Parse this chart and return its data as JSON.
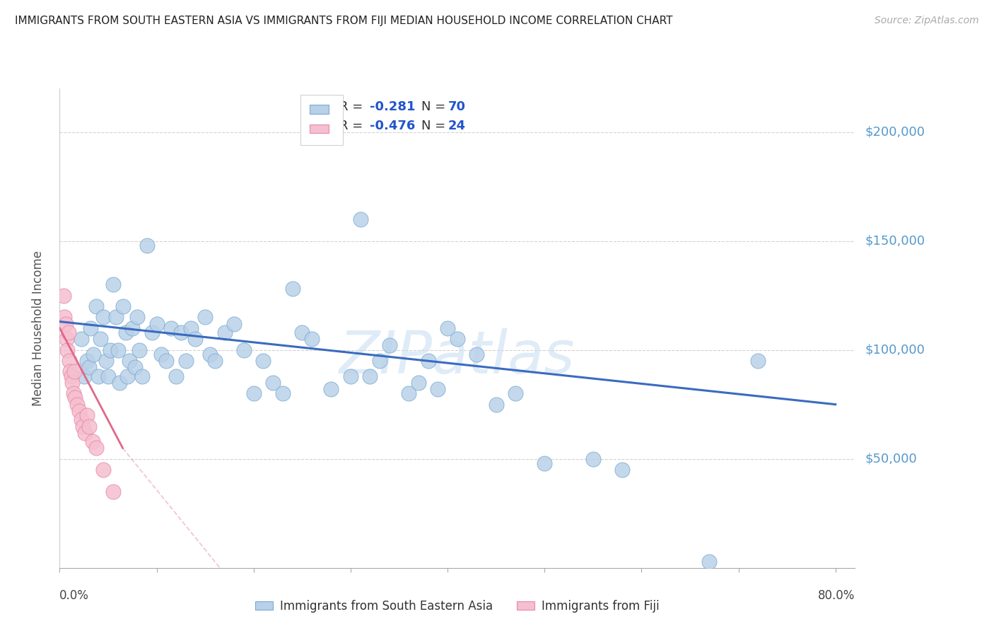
{
  "title": "IMMIGRANTS FROM SOUTH EASTERN ASIA VS IMMIGRANTS FROM FIJI MEDIAN HOUSEHOLD INCOME CORRELATION CHART",
  "source": "Source: ZipAtlas.com",
  "ylabel": "Median Household Income",
  "ytick_vals": [
    0,
    50000,
    100000,
    150000,
    200000
  ],
  "ytick_labels": [
    "",
    "$50,000",
    "$100,000",
    "$150,000",
    "$200,000"
  ],
  "xlim": [
    0.0,
    0.82
  ],
  "ylim": [
    20000,
    220000
  ],
  "blue_fill": "#b8d0e8",
  "blue_edge": "#7aaad0",
  "pink_fill": "#f5bfcf",
  "pink_edge": "#e888a8",
  "trend_blue_color": "#3a6bbf",
  "trend_pink_color": "#e06888",
  "R1": "-0.281",
  "N1": "70",
  "R2": "-0.476",
  "N2": "24",
  "label1": "Immigrants from South Eastern Asia",
  "label2": "Immigrants from Fiji",
  "watermark": "ZIPatlas",
  "blue_scatter_x": [
    0.022,
    0.025,
    0.028,
    0.03,
    0.032,
    0.035,
    0.038,
    0.04,
    0.042,
    0.045,
    0.048,
    0.05,
    0.052,
    0.055,
    0.058,
    0.06,
    0.062,
    0.065,
    0.068,
    0.07,
    0.072,
    0.075,
    0.078,
    0.08,
    0.082,
    0.085,
    0.09,
    0.095,
    0.1,
    0.105,
    0.11,
    0.115,
    0.12,
    0.125,
    0.13,
    0.135,
    0.14,
    0.15,
    0.155,
    0.16,
    0.17,
    0.18,
    0.19,
    0.2,
    0.21,
    0.22,
    0.23,
    0.24,
    0.25,
    0.26,
    0.28,
    0.3,
    0.31,
    0.32,
    0.33,
    0.34,
    0.36,
    0.37,
    0.38,
    0.39,
    0.4,
    0.41,
    0.43,
    0.45,
    0.47,
    0.5,
    0.55,
    0.58,
    0.67,
    0.72
  ],
  "blue_scatter_y": [
    105000,
    88000,
    95000,
    92000,
    110000,
    98000,
    120000,
    88000,
    105000,
    115000,
    95000,
    88000,
    100000,
    130000,
    115000,
    100000,
    85000,
    120000,
    108000,
    88000,
    95000,
    110000,
    92000,
    115000,
    100000,
    88000,
    148000,
    108000,
    112000,
    98000,
    95000,
    110000,
    88000,
    108000,
    95000,
    110000,
    105000,
    115000,
    98000,
    95000,
    108000,
    112000,
    100000,
    80000,
    95000,
    85000,
    80000,
    128000,
    108000,
    105000,
    82000,
    88000,
    160000,
    88000,
    95000,
    102000,
    80000,
    85000,
    95000,
    82000,
    110000,
    105000,
    98000,
    75000,
    80000,
    48000,
    50000,
    45000,
    3000,
    95000
  ],
  "fiji_scatter_x": [
    0.004,
    0.005,
    0.006,
    0.007,
    0.008,
    0.009,
    0.01,
    0.011,
    0.012,
    0.013,
    0.014,
    0.015,
    0.016,
    0.018,
    0.02,
    0.022,
    0.024,
    0.026,
    0.028,
    0.03,
    0.034,
    0.038,
    0.045,
    0.055
  ],
  "fiji_scatter_y": [
    125000,
    115000,
    112000,
    105000,
    100000,
    108000,
    95000,
    90000,
    88000,
    85000,
    80000,
    90000,
    78000,
    75000,
    72000,
    68000,
    65000,
    62000,
    70000,
    65000,
    58000,
    55000,
    45000,
    35000
  ],
  "blue_trend": [
    0.0,
    113000,
    0.8,
    75000
  ],
  "pink_trend_solid": [
    0.0,
    110000,
    0.065,
    55000
  ],
  "pink_trend_dash": [
    0.065,
    55000,
    0.22,
    -30000
  ]
}
